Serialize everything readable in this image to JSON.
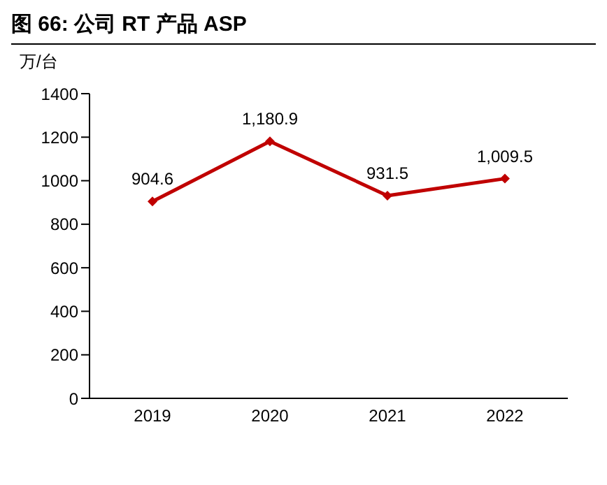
{
  "chart_data": {
    "type": "line",
    "title": "图 66: 公司 RT 产品 ASP",
    "ylabel": "万/台",
    "categories": [
      "2019",
      "2020",
      "2021",
      "2022"
    ],
    "series": [
      {
        "color": "#c00000",
        "values": [
          904.6,
          1180.9,
          931.5,
          1009.5
        ]
      }
    ],
    "value_labels": [
      "904.6",
      "1,180.9",
      "931.5",
      "1,009.5"
    ],
    "ylim": [
      0,
      1400
    ],
    "yticks": [
      0,
      200,
      400,
      600,
      800,
      1000,
      1200,
      1400
    ],
    "marker": "diamond",
    "line_style": "solid"
  }
}
